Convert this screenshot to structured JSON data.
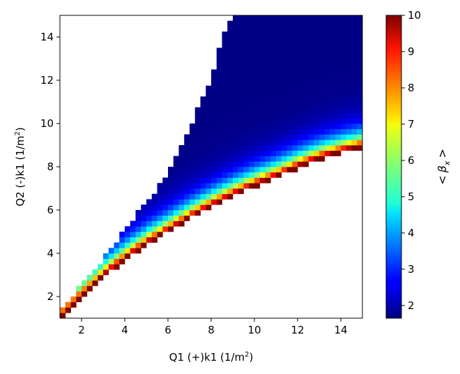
{
  "chart_data": {
    "type": "heatmap",
    "title": "",
    "xlabel": "Q1 (+)k1 (1/m²)",
    "xlabel_parts": {
      "prefix": "Q1 (+)k1 (1/m",
      "sup": "2",
      "suffix": ")"
    },
    "ylabel": "Q2 (-)k1 (1/m²)",
    "ylabel_parts": {
      "prefix": "Q2 (-)k1 (1/m",
      "sup": "2",
      "suffix": ")"
    },
    "xlim": [
      1,
      15
    ],
    "ylim": [
      1,
      15
    ],
    "xticks": [
      2,
      4,
      6,
      8,
      10,
      12,
      14
    ],
    "yticks": [
      2,
      4,
      6,
      8,
      10,
      12,
      14
    ],
    "grid_step": 0.25,
    "colorbar": {
      "label": "< β_x >",
      "label_parts": {
        "lt": "<",
        "beta": "β",
        "sub": "x",
        "gt": ">"
      },
      "vmin": 1.65,
      "vmax": 10,
      "ticks": [
        2,
        3,
        4,
        5,
        6,
        7,
        8,
        9,
        10
      ],
      "colormap": "jet"
    },
    "stability_region": {
      "description": "values defined for Q2 between lower and upper boundary as a function of Q1; blank elsewhere",
      "lower_boundary": [
        [
          1,
          1.1
        ],
        [
          2,
          2.1
        ],
        [
          3,
          3.0
        ],
        [
          4,
          3.8
        ],
        [
          5,
          4.5
        ],
        [
          6,
          5.1
        ],
        [
          7,
          5.7
        ],
        [
          8,
          6.25
        ],
        [
          9,
          6.75
        ],
        [
          10,
          7.2
        ],
        [
          11,
          7.6
        ],
        [
          12,
          8.05
        ],
        [
          13,
          8.45
        ],
        [
          14,
          8.75
        ],
        [
          15,
          9.0
        ]
      ],
      "upper_boundary": [
        [
          1,
          1.1
        ],
        [
          2,
          2.5
        ],
        [
          3,
          3.6
        ],
        [
          4,
          5.0
        ],
        [
          5,
          6.2
        ],
        [
          6,
          7.6
        ],
        [
          7,
          9.6
        ],
        [
          8,
          12.0
        ],
        [
          8.6,
          14.0
        ],
        [
          9.0,
          15.0
        ]
      ],
      "ridge_value": 10,
      "deep_interior_value": 1.7
    },
    "colors": {
      "axes": "#000000",
      "background": "#ffffff"
    }
  }
}
